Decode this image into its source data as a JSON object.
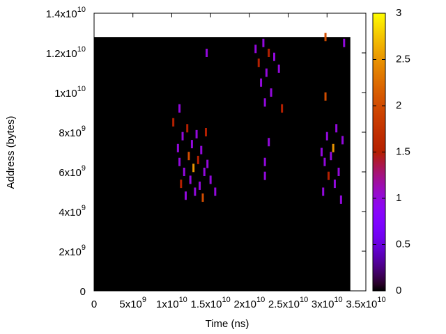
{
  "chart_data": {
    "type": "heatmap",
    "xlabel": "Time (ns)",
    "ylabel": "Address (bytes)",
    "xlim": [
      0,
      35000000000.0
    ],
    "ylim": [
      0,
      14000000000.0
    ],
    "xticks": [
      0,
      {
        "value": 5000000000.0,
        "label": "5x10^9"
      },
      {
        "value": 10000000000.0,
        "label": "1x10^10"
      },
      {
        "value": 15000000000.0,
        "label": "1.5x10^10"
      },
      {
        "value": 20000000000.0,
        "label": "2x10^10"
      },
      {
        "value": 25000000000.0,
        "label": "2.5x10^10"
      },
      {
        "value": 30000000000.0,
        "label": "3x10^10"
      },
      {
        "value": 35000000000.0,
        "label": "3.5x10^10"
      }
    ],
    "yticks": [
      0,
      {
        "value": 2000000000.0,
        "label": "2x10^9"
      },
      {
        "value": 4000000000.0,
        "label": "4x10^9"
      },
      {
        "value": 6000000000.0,
        "label": "6x10^9"
      },
      {
        "value": 8000000000.0,
        "label": "8x10^9"
      },
      {
        "value": 10000000000.0,
        "label": "1x10^10"
      },
      {
        "value": 12000000000.0,
        "label": "1.2x10^10"
      },
      {
        "value": 14000000000.0,
        "label": "1.4x10^10"
      }
    ],
    "clim": [
      0,
      3
    ],
    "cticks": [
      0,
      0.5,
      1,
      1.5,
      2,
      2.5,
      3
    ],
    "zero_region": {
      "x": [
        0,
        33000000000.0
      ],
      "y": [
        0,
        12800000000.0
      ],
      "value": 0
    },
    "cells": {
      "x": [
        10800000000.0,
        11000000000.0,
        11200000000.0,
        11400000000.0,
        11600000000.0,
        11800000000.0,
        12000000000.0,
        12200000000.0,
        12400000000.0,
        12600000000.0,
        12800000000.0,
        13000000000.0,
        13200000000.0,
        13400000000.0,
        13600000000.0,
        13800000000.0,
        14000000000.0,
        14200000000.0,
        14400000000.0,
        14600000000.0,
        15000000000.0,
        15600000000.0,
        11000000000.0,
        10200000000.0,
        14500000000.0,
        20800000000.0,
        21200000000.0,
        21500000000.0,
        21800000000.0,
        22000000000.0,
        22200000000.0,
        22500000000.0,
        22800000000.0,
        23200000000.0,
        23800000000.0,
        24200000000.0,
        22000000000.0,
        22000000000.0,
        22500000000.0,
        29300000000.0,
        29500000000.0,
        29700000000.0,
        30000000000.0,
        30200000000.0,
        30500000000.0,
        30800000000.0,
        31000000000.0,
        31200000000.0,
        31500000000.0,
        31800000000.0,
        32000000000.0,
        29800000000.0,
        29800000000.0,
        32200000000.0
      ],
      "y": [
        7200000000.0,
        6500000000.0,
        5400000000.0,
        7800000000.0,
        6000000000.0,
        4800000000.0,
        8200000000.0,
        6800000000.0,
        5600000000.0,
        7400000000.0,
        6200000000.0,
        5000000000.0,
        7900000000.0,
        6600000000.0,
        5300000000.0,
        7100000000.0,
        4700000000.0,
        6000000000.0,
        8000000000.0,
        6400000000.0,
        5600000000.0,
        5000000000.0,
        9200000000.0,
        8500000000.0,
        12000000000.0,
        12200000000.0,
        11500000000.0,
        10500000000.0,
        12500000000.0,
        9500000000.0,
        11000000000.0,
        12000000000.0,
        10000000000.0,
        11800000000.0,
        11200000000.0,
        9200000000.0,
        6500000000.0,
        5800000000.0,
        7500000000.0,
        7000000000.0,
        5000000000.0,
        6500000000.0,
        7800000000.0,
        5800000000.0,
        6800000000.0,
        7200000000.0,
        5400000000.0,
        8200000000.0,
        6000000000.0,
        4600000000.0,
        7600000000.0,
        9800000000.0,
        12800000000.0,
        12500000000.0
      ],
      "values": [
        1,
        1,
        1.5,
        1,
        1,
        1,
        1.5,
        2,
        1,
        1,
        2.5,
        1,
        1,
        1.5,
        1,
        1,
        2,
        1,
        1.5,
        1,
        1,
        1,
        1,
        1.5,
        1,
        1,
        1.5,
        1,
        1,
        1,
        1,
        1.5,
        1,
        1,
        1,
        1.5,
        1,
        1,
        1,
        1,
        1,
        1,
        1,
        1.5,
        1,
        2.5,
        1,
        1,
        1,
        1,
        1,
        2,
        2,
        1
      ]
    }
  }
}
